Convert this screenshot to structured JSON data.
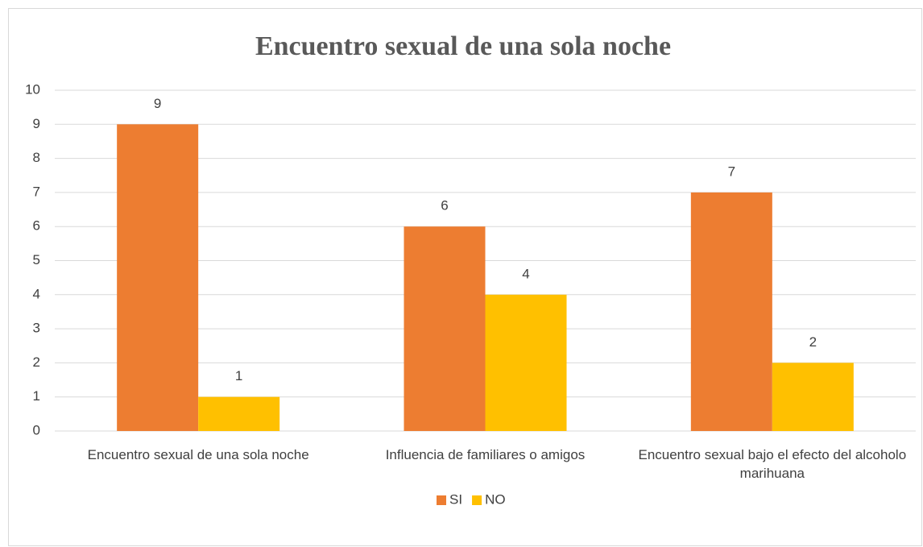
{
  "chart_data": {
    "type": "bar",
    "title": "Encuentro sexual de una sola noche",
    "categories": [
      "Encuentro sexual de una sola noche",
      "Influencia de familiares o amigos",
      "Encuentro sexual bajo el efecto del alcoholo marihuana"
    ],
    "series": [
      {
        "name": "SI",
        "color": "#ed7d31",
        "values": [
          9,
          6,
          7
        ]
      },
      {
        "name": "NO",
        "color": "#ffc000",
        "values": [
          1,
          4,
          2
        ]
      }
    ],
    "ylim": [
      0,
      10
    ],
    "yticks": [
      0,
      1,
      2,
      3,
      4,
      5,
      6,
      7,
      8,
      9,
      10
    ],
    "grid": true,
    "legend": "bottom"
  }
}
